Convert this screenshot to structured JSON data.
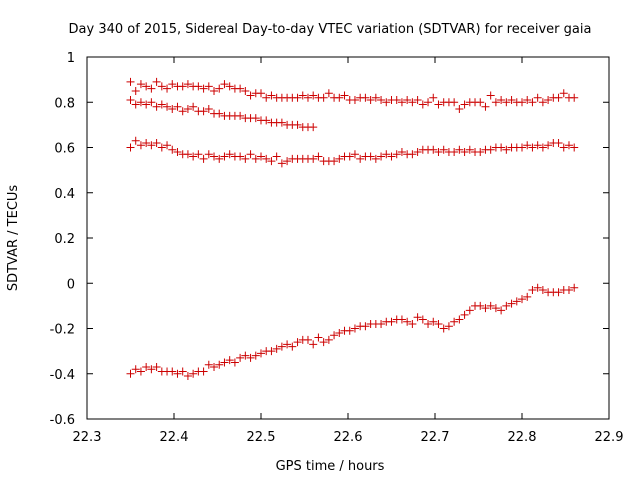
{
  "chart_data": {
    "type": "scatter",
    "title": "Day 340 of 2015, Sidereal Day-to-day VTEC variation (SDTVAR) for receiver gaia",
    "xlabel": "GPS time / hours",
    "ylabel": "SDTVAR / TECUs",
    "xlim": [
      22.3,
      22.9
    ],
    "ylim": [
      -0.6,
      1.0
    ],
    "xticks": [
      "22.3",
      "22.4",
      "22.5",
      "22.6",
      "22.7",
      "22.8",
      "22.9"
    ],
    "yticks": [
      "-0.6",
      "-0.4",
      "-0.2",
      "0",
      "0.2",
      "0.4",
      "0.6",
      "0.8",
      "1"
    ],
    "xtick_values": [
      22.3,
      22.4,
      22.5,
      22.6,
      22.7,
      22.8,
      22.9
    ],
    "ytick_values": [
      -0.6,
      -0.4,
      -0.2,
      0,
      0.2,
      0.4,
      0.6,
      0.8,
      1.0
    ],
    "marker": "+",
    "marker_color": "#cc0000",
    "grid": false,
    "series": [
      {
        "name": "series-top",
        "x": [
          22.35,
          22.356,
          22.362,
          22.368,
          22.374,
          22.38,
          22.386,
          22.392,
          22.398,
          22.404,
          22.41,
          22.416,
          22.422,
          22.428,
          22.434,
          22.44,
          22.446,
          22.452,
          22.458,
          22.464,
          22.47,
          22.476,
          22.482,
          22.488,
          22.494,
          22.5,
          22.506,
          22.512,
          22.518,
          22.524,
          22.53,
          22.536,
          22.542,
          22.548,
          22.554,
          22.56,
          22.566,
          22.572,
          22.578,
          22.584,
          22.59,
          22.596,
          22.602,
          22.608,
          22.614,
          22.62,
          22.626,
          22.632,
          22.638,
          22.644,
          22.65,
          22.656,
          22.662,
          22.668,
          22.674,
          22.68,
          22.686,
          22.692,
          22.698,
          22.704,
          22.71,
          22.716,
          22.722,
          22.728,
          22.734,
          22.74,
          22.746,
          22.752,
          22.758,
          22.764,
          22.77,
          22.776,
          22.782,
          22.788,
          22.794,
          22.8,
          22.806,
          22.812,
          22.818,
          22.824,
          22.83,
          22.836,
          22.842,
          22.848,
          22.854,
          22.86
        ],
        "y": [
          0.89,
          0.85,
          0.88,
          0.87,
          0.86,
          0.89,
          0.87,
          0.86,
          0.88,
          0.87,
          0.87,
          0.88,
          0.87,
          0.87,
          0.86,
          0.87,
          0.85,
          0.86,
          0.88,
          0.87,
          0.86,
          0.86,
          0.85,
          0.83,
          0.84,
          0.84,
          0.82,
          0.83,
          0.82,
          0.82,
          0.82,
          0.82,
          0.82,
          0.83,
          0.82,
          0.83,
          0.82,
          0.82,
          0.84,
          0.82,
          0.82,
          0.83,
          0.81,
          0.81,
          0.82,
          0.82,
          0.81,
          0.82,
          0.81,
          0.8,
          0.81,
          0.81,
          0.8,
          0.81,
          0.8,
          0.81,
          0.79,
          0.8,
          0.82,
          0.79,
          0.8,
          0.8,
          0.8,
          0.77,
          0.79,
          0.8,
          0.8,
          0.8,
          0.78,
          0.83,
          0.8,
          0.81,
          0.8,
          0.81,
          0.8,
          0.8,
          0.81,
          0.8,
          0.82,
          0.8,
          0.81,
          0.82,
          0.82,
          0.84,
          0.82,
          0.82
        ]
      },
      {
        "name": "series-second",
        "x": [
          22.35,
          22.356,
          22.362,
          22.368,
          22.374,
          22.38,
          22.386,
          22.392,
          22.398,
          22.404,
          22.41,
          22.416,
          22.422,
          22.428,
          22.434,
          22.44,
          22.446,
          22.452,
          22.458,
          22.464,
          22.47,
          22.476,
          22.482,
          22.488,
          22.494,
          22.5,
          22.506,
          22.512,
          22.518,
          22.524,
          22.53,
          22.536,
          22.542,
          22.548,
          22.554,
          22.56
        ],
        "y": [
          0.81,
          0.79,
          0.8,
          0.79,
          0.8,
          0.78,
          0.79,
          0.78,
          0.77,
          0.78,
          0.76,
          0.77,
          0.78,
          0.76,
          0.76,
          0.77,
          0.75,
          0.75,
          0.74,
          0.74,
          0.74,
          0.74,
          0.73,
          0.73,
          0.73,
          0.72,
          0.72,
          0.71,
          0.71,
          0.71,
          0.7,
          0.7,
          0.7,
          0.69,
          0.69,
          0.69
        ]
      },
      {
        "name": "series-third",
        "x": [
          22.35,
          22.356,
          22.362,
          22.368,
          22.374,
          22.38,
          22.386,
          22.392,
          22.398,
          22.404,
          22.41,
          22.416,
          22.422,
          22.428,
          22.434,
          22.44,
          22.446,
          22.452,
          22.458,
          22.464,
          22.47,
          22.476,
          22.482,
          22.488,
          22.494,
          22.5,
          22.506,
          22.512,
          22.518,
          22.524,
          22.53,
          22.536,
          22.542,
          22.548,
          22.554,
          22.56,
          22.566,
          22.572,
          22.578,
          22.584,
          22.59,
          22.596,
          22.602,
          22.608,
          22.614,
          22.62,
          22.626,
          22.632,
          22.638,
          22.644,
          22.65,
          22.656,
          22.662,
          22.668,
          22.674,
          22.68,
          22.686,
          22.692,
          22.698,
          22.704,
          22.71,
          22.716,
          22.722,
          22.728,
          22.734,
          22.74,
          22.746,
          22.752,
          22.758,
          22.764,
          22.77,
          22.776,
          22.782,
          22.788,
          22.794,
          22.8,
          22.806,
          22.812,
          22.818,
          22.824,
          22.83,
          22.836,
          22.842,
          22.848,
          22.854,
          22.86
        ],
        "y": [
          0.6,
          0.63,
          0.61,
          0.62,
          0.61,
          0.62,
          0.6,
          0.61,
          0.59,
          0.58,
          0.57,
          0.57,
          0.56,
          0.57,
          0.55,
          0.57,
          0.56,
          0.55,
          0.56,
          0.57,
          0.56,
          0.56,
          0.55,
          0.57,
          0.55,
          0.56,
          0.55,
          0.54,
          0.56,
          0.53,
          0.54,
          0.55,
          0.55,
          0.55,
          0.55,
          0.55,
          0.56,
          0.54,
          0.54,
          0.54,
          0.55,
          0.56,
          0.56,
          0.57,
          0.55,
          0.56,
          0.56,
          0.55,
          0.56,
          0.57,
          0.56,
          0.57,
          0.58,
          0.57,
          0.57,
          0.58,
          0.59,
          0.59,
          0.59,
          0.58,
          0.59,
          0.58,
          0.58,
          0.59,
          0.58,
          0.59,
          0.58,
          0.58,
          0.59,
          0.59,
          0.6,
          0.6,
          0.59,
          0.6,
          0.6,
          0.6,
          0.61,
          0.6,
          0.61,
          0.6,
          0.61,
          0.62,
          0.62,
          0.6,
          0.61,
          0.6
        ]
      },
      {
        "name": "series-bottom",
        "x": [
          22.35,
          22.356,
          22.362,
          22.368,
          22.374,
          22.38,
          22.386,
          22.392,
          22.398,
          22.404,
          22.41,
          22.416,
          22.422,
          22.428,
          22.434,
          22.44,
          22.446,
          22.452,
          22.458,
          22.464,
          22.47,
          22.476,
          22.482,
          22.488,
          22.494,
          22.5,
          22.506,
          22.512,
          22.518,
          22.524,
          22.53,
          22.536,
          22.542,
          22.548,
          22.554,
          22.56,
          22.566,
          22.572,
          22.578,
          22.584,
          22.59,
          22.596,
          22.602,
          22.608,
          22.614,
          22.62,
          22.626,
          22.632,
          22.638,
          22.644,
          22.65,
          22.656,
          22.662,
          22.668,
          22.674,
          22.68,
          22.686,
          22.692,
          22.698,
          22.704,
          22.71,
          22.716,
          22.722,
          22.728,
          22.734,
          22.74,
          22.746,
          22.752,
          22.758,
          22.764,
          22.77,
          22.776,
          22.782,
          22.788,
          22.794,
          22.8,
          22.806,
          22.812,
          22.818,
          22.824,
          22.83,
          22.836,
          22.842,
          22.848,
          22.854,
          22.86
        ],
        "y": [
          -0.4,
          -0.38,
          -0.39,
          -0.37,
          -0.38,
          -0.37,
          -0.39,
          -0.39,
          -0.39,
          -0.4,
          -0.39,
          -0.41,
          -0.4,
          -0.39,
          -0.39,
          -0.36,
          -0.37,
          -0.36,
          -0.35,
          -0.34,
          -0.35,
          -0.33,
          -0.32,
          -0.33,
          -0.32,
          -0.31,
          -0.3,
          -0.3,
          -0.29,
          -0.28,
          -0.27,
          -0.28,
          -0.26,
          -0.25,
          -0.25,
          -0.27,
          -0.24,
          -0.26,
          -0.25,
          -0.23,
          -0.22,
          -0.21,
          -0.21,
          -0.2,
          -0.19,
          -0.19,
          -0.18,
          -0.18,
          -0.18,
          -0.17,
          -0.17,
          -0.16,
          -0.16,
          -0.17,
          -0.18,
          -0.15,
          -0.16,
          -0.18,
          -0.17,
          -0.18,
          -0.2,
          -0.19,
          -0.17,
          -0.16,
          -0.14,
          -0.12,
          -0.1,
          -0.1,
          -0.11,
          -0.1,
          -0.11,
          -0.12,
          -0.1,
          -0.09,
          -0.08,
          -0.07,
          -0.06,
          -0.03,
          -0.02,
          -0.03,
          -0.04,
          -0.04,
          -0.04,
          -0.03,
          -0.03,
          -0.02
        ]
      }
    ]
  }
}
